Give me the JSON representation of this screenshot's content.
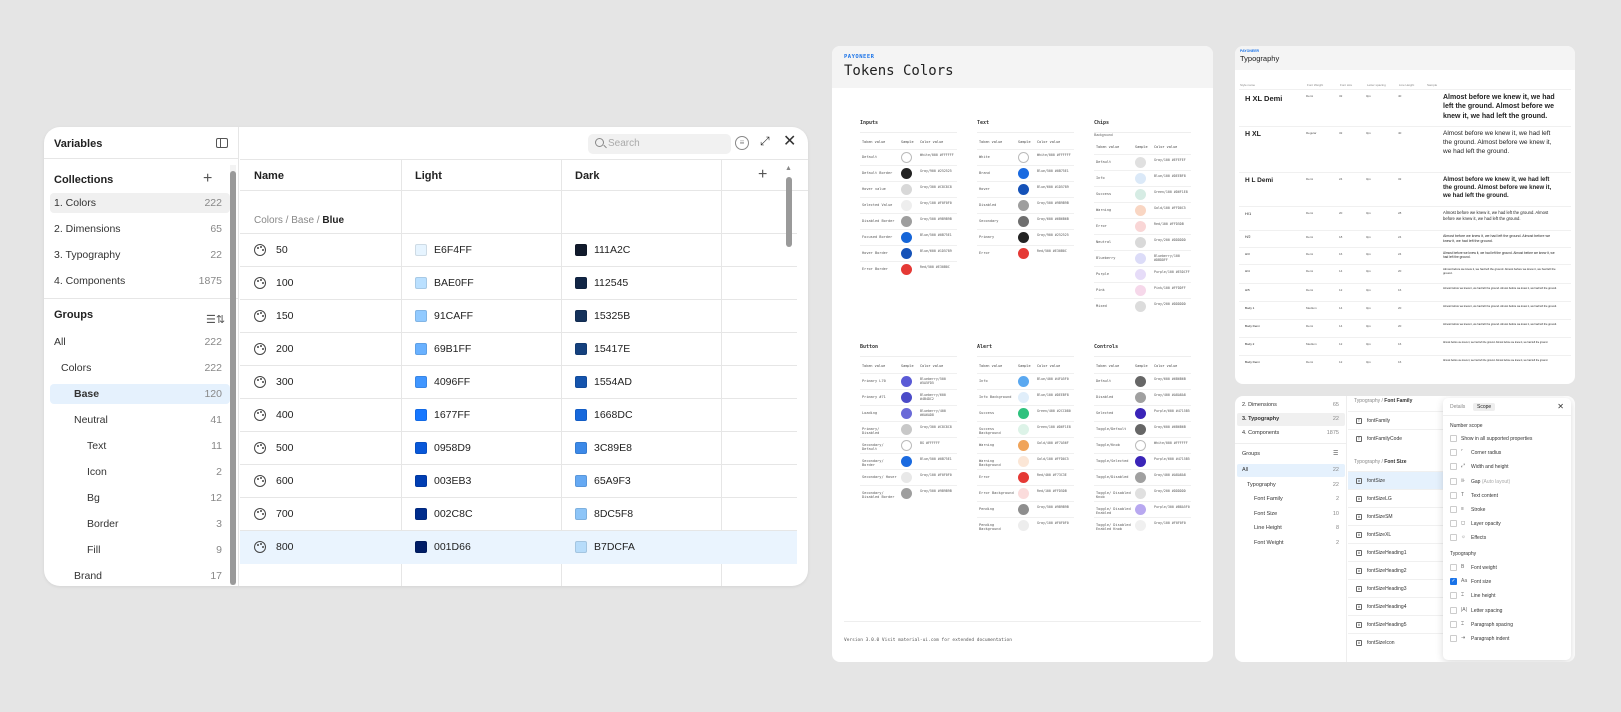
{
  "variables_panel": {
    "title": "Variables",
    "collections_label": "Collections",
    "collections": [
      {
        "label": "1. Colors",
        "count": "222"
      },
      {
        "label": "2. Dimensions",
        "count": "65"
      },
      {
        "label": "3. Typography",
        "count": "22"
      },
      {
        "label": "4. Components",
        "count": "1875"
      }
    ],
    "groups_label": "Groups",
    "groups": [
      {
        "label": "All",
        "count": "222"
      },
      {
        "label": "Colors",
        "count": "222"
      },
      {
        "label": "Base",
        "count": "120"
      },
      {
        "label": "Neutral",
        "count": "41"
      },
      {
        "label": "Text",
        "count": "11"
      },
      {
        "label": "Icon",
        "count": "2"
      },
      {
        "label": "Bg",
        "count": "12"
      },
      {
        "label": "Border",
        "count": "3"
      },
      {
        "label": "Fill",
        "count": "9"
      },
      {
        "label": "Brand",
        "count": "17"
      }
    ],
    "search_placeholder": "Search",
    "columns": [
      "Name",
      "Light",
      "Dark"
    ],
    "breadcrumb_path": "Colors / Base / ",
    "breadcrumb_current": "Blue",
    "rows": [
      {
        "name": "50",
        "light": "E6F4FF",
        "light_color": "#E6F4FF",
        "dark": "111A2C",
        "dark_color": "#111A2C"
      },
      {
        "name": "100",
        "light": "BAE0FF",
        "light_color": "#BAE0FF",
        "dark": "112545",
        "dark_color": "#112545"
      },
      {
        "name": "150",
        "light": "91CAFF",
        "light_color": "#91CAFF",
        "dark": "15325B",
        "dark_color": "#15325B"
      },
      {
        "name": "200",
        "light": "69B1FF",
        "light_color": "#69B1FF",
        "dark": "15417E",
        "dark_color": "#15417E"
      },
      {
        "name": "300",
        "light": "4096FF",
        "light_color": "#4096FF",
        "dark": "1554AD",
        "dark_color": "#1554AD"
      },
      {
        "name": "400",
        "light": "1677FF",
        "light_color": "#1677FF",
        "dark": "1668DC",
        "dark_color": "#1668DC"
      },
      {
        "name": "500",
        "light": "0958D9",
        "light_color": "#0958D9",
        "dark": "3C89E8",
        "dark_color": "#3C89E8"
      },
      {
        "name": "600",
        "light": "003EB3",
        "light_color": "#003EB3",
        "dark": "65A9F3",
        "dark_color": "#65A9F3"
      },
      {
        "name": "700",
        "light": "002C8C",
        "light_color": "#002C8C",
        "dark": "8DC5F8",
        "dark_color": "#8DC5F8"
      },
      {
        "name": "800",
        "light": "001D66",
        "light_color": "#001D66",
        "dark": "B7DCFA",
        "dark_color": "#B7DCFA"
      }
    ]
  },
  "tokens_page": {
    "brand": "PAYONEER",
    "title": "Tokens Colors",
    "col_headers": [
      "Token value",
      "Sample",
      "Color value"
    ],
    "sections": [
      {
        "title": "Inputs",
        "sub": "",
        "items": [
          {
            "name": "Default",
            "color": "#ffffff",
            "value": "White/000 #FFFFFF"
          },
          {
            "name": "Default Border",
            "color": "#222222",
            "value": "Gray/900 #252525"
          },
          {
            "name": "Hover value",
            "color": "#d8d8d8",
            "value": "Gray/300 #C8C8C8"
          },
          {
            "name": "Selected Value",
            "color": "#eeeeee",
            "value": "Gray/100 #F0F0F0"
          },
          {
            "name": "Disabled Border",
            "color": "#9e9e9e",
            "value": "Gray/500 #9B9B9B"
          },
          {
            "name": "Focused Border",
            "color": "#1565d8",
            "value": "Blue/500 #0B75E1"
          },
          {
            "name": "Hover Border",
            "color": "#1552b8",
            "value": "Blue/600 #1D5789"
          },
          {
            "name": "Error Border",
            "color": "#e53935",
            "value": "Red/500 #E30B0C"
          }
        ]
      },
      {
        "title": "Text",
        "sub": "",
        "items": [
          {
            "name": "White",
            "color": "#ffffff",
            "value": "White/000 #FFFFFF"
          },
          {
            "name": "Brand",
            "color": "#1a6ae0",
            "value": "Blue/500 #0B75E1"
          },
          {
            "name": "Hover",
            "color": "#1552b8",
            "value": "Blue/600 #1D5789"
          },
          {
            "name": "Disabled",
            "color": "#9e9e9e",
            "value": "Gray/500 #9B9B9B"
          },
          {
            "name": "Secondary",
            "color": "#6e6e6e",
            "value": "Gray/600 #6B6B6B"
          },
          {
            "name": "Primary",
            "color": "#222222",
            "value": "Gray/900 #252525"
          },
          {
            "name": "Error",
            "color": "#e53935",
            "value": "Red/500 #E30B0C"
          }
        ]
      },
      {
        "title": "Chips",
        "sub": "Background",
        "items": [
          {
            "name": "Default",
            "color": "#e0e0e0",
            "value": "Gray/100 #EFEFEF"
          },
          {
            "name": "Info",
            "color": "#dbe9f8",
            "value": "Blue/100 #DEEBF8"
          },
          {
            "name": "Success",
            "color": "#d6ece4",
            "value": "Green/100 #D6F1E8"
          },
          {
            "name": "Warning",
            "color": "#f9d6c3",
            "value": "Gold/100 #FFD0C5"
          },
          {
            "name": "Error",
            "color": "#f9d6d6",
            "value": "Red/100 #FFD5DB"
          },
          {
            "name": "Neutral",
            "color": "#d9d9d9",
            "value": "Gray/200 #DDDDDD"
          },
          {
            "name": "Blueberry",
            "color": "#dcdcf8",
            "value": "Blueberry/100 #DBDDFF"
          },
          {
            "name": "Purple",
            "color": "#e6dcf8",
            "value": "Purple/100 #E5DCFF"
          },
          {
            "name": "Pink",
            "color": "#f6d8ea",
            "value": "Pink/100 #FFDDFF"
          },
          {
            "name": "Mixed",
            "color": "#dcdcdc",
            "value": "Gray/200 #DDDDDD"
          }
        ]
      },
      {
        "title": "Button",
        "sub": "",
        "items": [
          {
            "name": "Primary L70",
            "color": "#5a5ad6",
            "value": "Blueberry/500 #5A5FD5"
          },
          {
            "name": "Primary #71",
            "color": "#4b4bc8",
            "value": "Blueberry/600 #4B4DC2"
          },
          {
            "name": "Loading",
            "color": "#6a6ad8",
            "value": "Blueberry/400 #6A6AD8"
          },
          {
            "name": "Primary/ Disabled",
            "color": "#c8c8c8",
            "value": "Gray/300 #C8C8C8"
          },
          {
            "name": "Secondary/ Default",
            "color": "#ffffff",
            "value": "BG #FFFFFF"
          },
          {
            "name": "Secondary/ Border",
            "color": "#1a6ae0",
            "value": "Blue/500 #0B75E1"
          },
          {
            "name": "Secondary/ Hover",
            "color": "#e8e8e8",
            "value": "Gray/100 #F0F0F0"
          },
          {
            "name": "Secondary/ Disabled Border",
            "color": "#9e9e9e",
            "value": "Gray/500 #9B9B9B"
          }
        ]
      },
      {
        "title": "Alert",
        "sub": "",
        "items": [
          {
            "name": "Info",
            "color": "#5aa8f0",
            "value": "Blue/400 #4FA5F0"
          },
          {
            "name": "Info Background",
            "color": "#e0eefa",
            "value": "Blue/100 #DEEBF8"
          },
          {
            "name": "Success",
            "color": "#2fc27e",
            "value": "Green/400 #2CC080"
          },
          {
            "name": "Success Background",
            "color": "#ddf3e8",
            "value": "Green/100 #D6F1E8"
          },
          {
            "name": "Warning",
            "color": "#f0a45a",
            "value": "Gold/400 #F7A56F"
          },
          {
            "name": "Warning Background",
            "color": "#fbe6d6",
            "value": "Gold/100 #FFD0C5"
          },
          {
            "name": "Error",
            "color": "#e53935",
            "value": "Red/400 #F73C3E"
          },
          {
            "name": "Error Background",
            "color": "#fbdcdc",
            "value": "Red/100 #FFD5DB"
          },
          {
            "name": "Pending",
            "color": "#8e8e8e",
            "value": "Gray/500 #9B9B9B"
          },
          {
            "name": "Pending Background",
            "color": "#ededed",
            "value": "Gray/100 #F0F0F0"
          }
        ]
      },
      {
        "title": "Controls",
        "sub": "",
        "items": [
          {
            "name": "Default",
            "color": "#666666",
            "value": "Gray/600 #6B6B6B"
          },
          {
            "name": "Disabled",
            "color": "#a0a0a0",
            "value": "Gray/400 #A8A8A8"
          },
          {
            "name": "Selected",
            "color": "#3a24b8",
            "value": "Purple/600 #4715B5"
          },
          {
            "name": "Toggle/Default",
            "color": "#666666",
            "value": "Gray/600 #6B6B6B"
          },
          {
            "name": "Toggle/Knob",
            "color": "#ffffff",
            "value": "White/000 #FFFFFF"
          },
          {
            "name": "Toggle/Selected",
            "color": "#3a24b8",
            "value": "Purple/600 #4715B5"
          },
          {
            "name": "Toggle/Disabled",
            "color": "#a0a0a0",
            "value": "Gray/400 #A8A8A8"
          },
          {
            "name": "Toggle/ Disabled Knob",
            "color": "#e0e0e0",
            "value": "Gray/200 #DDDDDD"
          },
          {
            "name": "Toggle/ Disabled Enabled",
            "color": "#b8a8f0",
            "value": "Purple/300 #B8A5F0"
          },
          {
            "name": "Toggle/ Disabled Enabled Knob",
            "color": "#f0f0f0",
            "value": "Gray/100 #F0F0F0"
          }
        ]
      }
    ],
    "footer": "Version 3.0.0  Visit material-ui.com for extended documentation"
  },
  "typography_page": {
    "brand": "PAYONEER",
    "title": "Typography",
    "headers": [
      "Style name",
      "Font Weight",
      "Font size",
      "Letter spacing",
      "Line Height",
      "Sample"
    ],
    "rows": [
      {
        "name": "H XL Demi",
        "weight": "Demi",
        "size": "32",
        "ls": "0px",
        "lh": "40",
        "sample": "Almost before we knew it, we had left the ground. Almost before we knew it, we had left the ground."
      },
      {
        "name": "H XL",
        "weight": "Regular",
        "size": "32",
        "ls": "0px",
        "lh": "40",
        "sample": "Almost before we knew it, we had left the ground. Almost before we knew it, we had left the ground."
      },
      {
        "name": "H L Demi",
        "weight": "Demi",
        "size": "24",
        "ls": "0px",
        "lh": "32",
        "sample": "Almost before we knew it, we had left the ground. Almost before we knew it, we had left the ground."
      },
      {
        "name": "H/1",
        "weight": "Demi",
        "size": "20",
        "ls": "0px",
        "lh": "28",
        "sample": "Almost before we knew it, we had left the ground. Almost before we knew it, we had left the ground."
      },
      {
        "name": "H/2",
        "weight": "Demi",
        "size": "18",
        "ls": "0px",
        "lh": "24",
        "sample": "Almost before we knew it, we had left the ground. Almost before we knew it, we had left the ground."
      },
      {
        "name": "H/3",
        "weight": "Demi",
        "size": "16",
        "ls": "0px",
        "lh": "24",
        "sample": "Almost before we knew it, we had left the ground. Almost before we knew it, we had left the ground."
      },
      {
        "name": "H/4",
        "weight": "Demi",
        "size": "14",
        "ls": "0px",
        "lh": "20",
        "sample": "Almost before we knew it, we had left the ground. Almost before we knew it, we had left the ground."
      },
      {
        "name": "H/5",
        "weight": "Demi",
        "size": "12",
        "ls": "0px",
        "lh": "16",
        "sample": "Almost before we knew it, we had left the ground. Almost before we knew it, we had left the ground."
      },
      {
        "name": "Body 1",
        "weight": "Medium",
        "size": "14",
        "ls": "0px",
        "lh": "20",
        "sample": "Almost before we knew it, we had left the ground. Almost before we knew it, we had left the ground."
      },
      {
        "name": "Body Demi",
        "weight": "Demi",
        "size": "14",
        "ls": "0px",
        "lh": "20",
        "sample": "Almost before we knew it, we had left the ground. Almost before we knew it, we had left the ground."
      },
      {
        "name": "Body 2",
        "weight": "Medium",
        "size": "12",
        "ls": "0px",
        "lh": "16",
        "sample": "Almost before we knew it, we had left the ground. Almost before we knew it, we had left the ground."
      },
      {
        "name": "Body Demi",
        "weight": "Demi",
        "size": "12",
        "ls": "0px",
        "lh": "16",
        "sample": "Almost before we knew it, we had left the ground. Almost before we knew it, we had left the ground."
      }
    ]
  },
  "fontsize_panel": {
    "collections": [
      {
        "label": "2. Dimensions",
        "count": "65"
      },
      {
        "label": "3. Typography",
        "count": "22"
      },
      {
        "label": "4. Components",
        "count": "1875"
      }
    ],
    "groups_label": "Groups",
    "groups": [
      {
        "label": "All",
        "count": "22"
      },
      {
        "label": "Typography",
        "count": "22"
      },
      {
        "label": "Font Family",
        "count": "2"
      },
      {
        "label": "Font Size",
        "count": "10"
      },
      {
        "label": "Line Height",
        "count": "8"
      },
      {
        "label": "Font Weight",
        "count": "2"
      }
    ],
    "group1_path": "Typography / ",
    "group1_name": "Font Family",
    "group1_vars": [
      "fontFamily",
      "fontFamilyCode"
    ],
    "group2_path": "Typography / ",
    "group2_name": "Font Size",
    "group2_vars": [
      "fontSize",
      "fontSizeLG",
      "fontSizeSM",
      "fontSizeXL",
      "fontSizeHeading1",
      "fontSizeHeading2",
      "fontSizeHeading3",
      "fontSizeHeading4",
      "fontSizeHeading5",
      "fontSizeIcon"
    ],
    "popup": {
      "tab_details": "Details",
      "tab_scope": "Scope",
      "number_scope": "Number scope",
      "options": [
        {
          "label": "Show in all supported properties",
          "muted": "",
          "checked": false,
          "glyph": ""
        },
        {
          "label": "Corner radius",
          "muted": "",
          "checked": false,
          "glyph": "⌜"
        },
        {
          "label": "Width and height",
          "muted": "",
          "checked": false,
          "glyph": "⤢"
        },
        {
          "label": "Gap",
          "muted": " (Auto layout)",
          "checked": false,
          "glyph": "⊪"
        },
        {
          "label": "Text content",
          "muted": "",
          "checked": false,
          "glyph": "T"
        },
        {
          "label": "Stroke",
          "muted": "",
          "checked": false,
          "glyph": "≡"
        },
        {
          "label": "Layer opacity",
          "muted": "",
          "checked": false,
          "glyph": "◻"
        },
        {
          "label": "Effects",
          "muted": "",
          "checked": false,
          "glyph": "☼"
        }
      ],
      "typography_label": "Typography",
      "typo_options": [
        {
          "label": "Font weight",
          "muted": "",
          "checked": false,
          "glyph": "B"
        },
        {
          "label": "Font size",
          "muted": "",
          "checked": true,
          "glyph": "Aa"
        },
        {
          "label": "Line height",
          "muted": "",
          "checked": false,
          "glyph": "⌶"
        },
        {
          "label": "Letter spacing",
          "muted": "",
          "checked": false,
          "glyph": "|A|"
        },
        {
          "label": "Paragraph spacing",
          "muted": "",
          "checked": false,
          "glyph": "⌶"
        },
        {
          "label": "Paragraph indent",
          "muted": "",
          "checked": false,
          "glyph": "⇥"
        }
      ]
    }
  }
}
